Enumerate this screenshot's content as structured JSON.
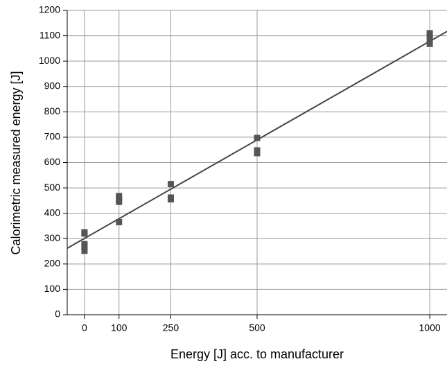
{
  "chart_data": {
    "type": "scatter",
    "xlabel": "Energy [J] acc. to manufacturer",
    "ylabel": "Calorimetric measured energy [J]",
    "xlim": [
      -50,
      1050
    ],
    "ylim": [
      0,
      1200
    ],
    "xticks": [
      0,
      100,
      250,
      500,
      1000
    ],
    "yticks": [
      0,
      100,
      200,
      300,
      400,
      500,
      600,
      700,
      800,
      900,
      1000,
      1100,
      1200
    ],
    "grid": true,
    "series": [
      {
        "color": "#555555",
        "x": [
          0,
          0,
          0,
          0,
          0,
          100,
          100,
          100,
          100,
          250,
          250,
          250,
          500,
          500,
          500,
          1000,
          1000,
          1000,
          1000
        ],
        "values": [
          325,
          320,
          278,
          270,
          252,
          468,
          455,
          445,
          365,
          515,
          462,
          455,
          697,
          648,
          637,
          1110,
          1100,
          1085,
          1068
        ]
      }
    ],
    "fit_line": {
      "color": "#444444",
      "x": [
        -50,
        1050
      ],
      "values": [
        262,
        1117
      ]
    }
  }
}
